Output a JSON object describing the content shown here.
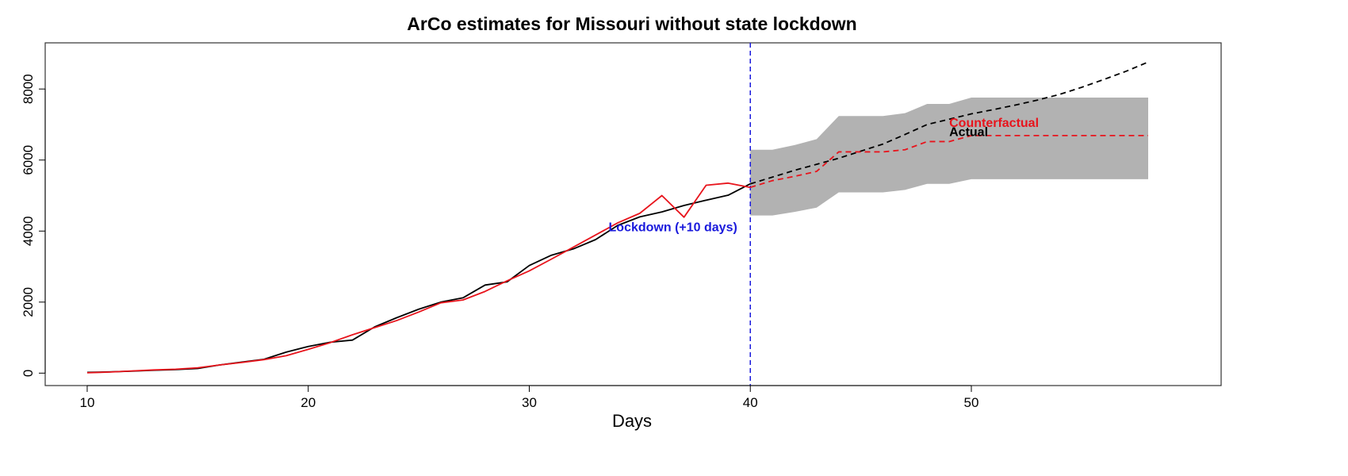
{
  "chart_data": {
    "type": "line",
    "title": "ArCo estimates for Missouri without state lockdown",
    "xlabel": "Days",
    "ylabel": "",
    "xlim": [
      8.1,
      61.3
    ],
    "ylim": [
      -350,
      9300
    ],
    "x_ticks": [
      10,
      20,
      30,
      40,
      50
    ],
    "y_ticks": [
      0,
      2000,
      4000,
      6000,
      8000
    ],
    "grid": false,
    "legend": "none",
    "series": [
      {
        "name": "Actual",
        "color": "#000000",
        "dash": "solid",
        "x": [
          10,
          11,
          12,
          13,
          14,
          15,
          16,
          17,
          18,
          19,
          20,
          21,
          22,
          23,
          24,
          25,
          26,
          27,
          28,
          29,
          30,
          31,
          32,
          33,
          34,
          35,
          36,
          37,
          38,
          39,
          40
        ],
        "y": [
          20,
          35,
          55,
          80,
          100,
          130,
          230,
          310,
          390,
          590,
          750,
          870,
          930,
          1300,
          1560,
          1800,
          2000,
          2120,
          2480,
          2570,
          3030,
          3320,
          3500,
          3760,
          4160,
          4400,
          4540,
          4720,
          4870,
          5010,
          5330
        ]
      },
      {
        "name": "Actual",
        "color": "#000000",
        "dash": "dashed",
        "x": [
          40,
          41,
          42,
          43,
          44,
          45,
          46,
          47,
          48,
          49,
          50,
          51,
          52,
          53,
          54,
          55,
          56,
          57,
          58
        ],
        "y": [
          5330,
          5520,
          5710,
          5880,
          6050,
          6250,
          6450,
          6720,
          7000,
          7150,
          7300,
          7420,
          7550,
          7690,
          7850,
          8050,
          8270,
          8500,
          8760
        ]
      },
      {
        "name": "Counterfactual",
        "color": "#e8141c",
        "dash": "solid",
        "x": [
          10,
          11,
          12,
          13,
          14,
          15,
          16,
          17,
          18,
          19,
          20,
          21,
          22,
          23,
          24,
          25,
          26,
          27,
          28,
          29,
          30,
          31,
          32,
          33,
          34,
          35,
          36,
          37,
          38,
          39,
          40
        ],
        "y": [
          10,
          30,
          60,
          90,
          110,
          150,
          230,
          300,
          380,
          490,
          670,
          860,
          1080,
          1280,
          1480,
          1720,
          1980,
          2060,
          2300,
          2600,
          2880,
          3210,
          3550,
          3890,
          4230,
          4500,
          5000,
          4390,
          5290,
          5350,
          5230
        ]
      },
      {
        "name": "Counterfactual",
        "color": "#e8141c",
        "dash": "dashed",
        "x": [
          40,
          41,
          42,
          43,
          44,
          45,
          46,
          47,
          48,
          49,
          50,
          51,
          52,
          53,
          54,
          55,
          56,
          57,
          58
        ],
        "y": [
          5230,
          5420,
          5540,
          5680,
          6230,
          6230,
          6230,
          6290,
          6520,
          6520,
          6690,
          6690,
          6690,
          6690,
          6690,
          6690,
          6690,
          6690,
          6690
        ]
      }
    ],
    "band": {
      "color": "#b2b2b2",
      "x": [
        40,
        41,
        42,
        43,
        44,
        45,
        46,
        47,
        48,
        49,
        50,
        51,
        52,
        53,
        54,
        55,
        56,
        57,
        58
      ],
      "lower": [
        4440,
        4440,
        4540,
        4660,
        5090,
        5090,
        5090,
        5160,
        5330,
        5330,
        5460,
        5460,
        5460,
        5460,
        5460,
        5460,
        5460,
        5460,
        5460
      ],
      "upper": [
        6290,
        6290,
        6420,
        6590,
        7240,
        7240,
        7240,
        7320,
        7580,
        7580,
        7760,
        7760,
        7760,
        7760,
        7760,
        7760,
        7760,
        7760,
        7760
      ]
    },
    "vline": {
      "x": 40,
      "color": "#1a1adc",
      "dash": "dashed"
    },
    "annotations": [
      {
        "text": "Lockdown (+10 days)",
        "x": 36.5,
        "y": 3990,
        "color": "#1a1adc"
      },
      {
        "text": "Counterfactual",
        "x": 49,
        "y": 6930,
        "color": "#e8141c"
      },
      {
        "text": "Actual",
        "x": 49,
        "y": 6680,
        "color": "#000000"
      }
    ]
  }
}
